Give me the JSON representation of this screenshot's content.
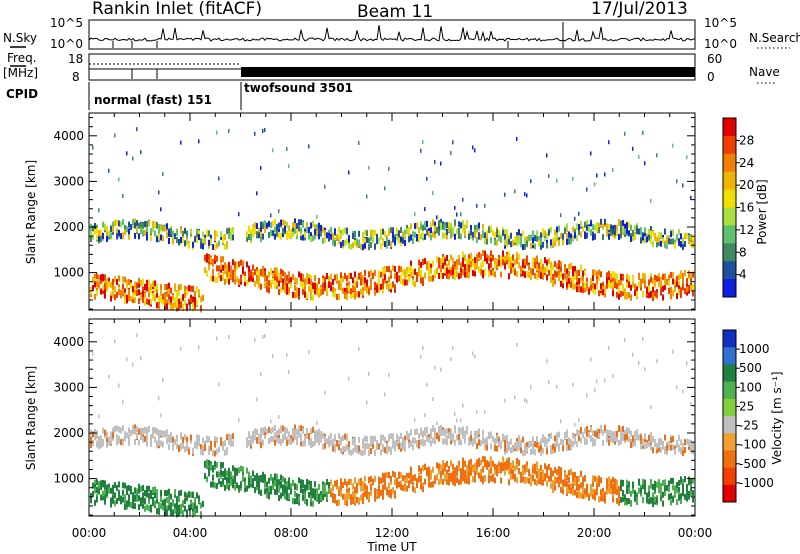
{
  "header": {
    "station": "Rankin Inlet (fitACF)",
    "beam": "Beam 11",
    "date": "17/Jul/2013"
  },
  "panels": {
    "nsky_label": "N.Sky",
    "nsearch_label": "N.Search",
    "freq_label_line1": "Freq.",
    "freq_label_line2": "[MHz]",
    "nave_label": "Nave",
    "cpid_label": "CPID",
    "log_tick_high": "10^5",
    "log_tick_low": "10^0",
    "freq_ticks": [
      "18",
      "8"
    ],
    "nave_ticks": [
      "60",
      "0"
    ],
    "cpid_modes": [
      "normal (fast) 151",
      "twofsound 3501"
    ]
  },
  "chart_data": [
    {
      "type": "heatmap",
      "name": "power",
      "xlabel": "Time UT",
      "ylabel": "Slant Range [km]",
      "xlim": [
        0,
        24
      ],
      "ylim": [
        180,
        4500
      ],
      "x_ticks": [
        "00:00",
        "04:00",
        "08:00",
        "12:00",
        "16:00",
        "20:00",
        "00:00"
      ],
      "y_ticks": [
        "1000",
        "2000",
        "3000",
        "4000"
      ],
      "colorbar_label": "Power [dB]",
      "colorbar_ticks": [
        "28",
        "24",
        "20",
        "16",
        "12",
        "8",
        "4"
      ],
      "colorbar_colors": [
        "#e00000",
        "#f04000",
        "#f08000",
        "#f0b400",
        "#f0e000",
        "#a8e040",
        "#60c070",
        "#408860",
        "#2050a0",
        "#1020e0"
      ]
    },
    {
      "type": "heatmap",
      "name": "velocity",
      "xlabel": "Time UT",
      "ylabel": "Slant Range [km]",
      "xlim": [
        0,
        24
      ],
      "ylim": [
        180,
        4500
      ],
      "x_ticks": [
        "00:00",
        "04:00",
        "08:00",
        "12:00",
        "16:00",
        "20:00",
        "00:00"
      ],
      "y_ticks": [
        "1000",
        "2000",
        "3000",
        "4000"
      ],
      "colorbar_label": "Velocity [m s⁻¹]",
      "colorbar_ticks": [
        "1000",
        "500",
        "100",
        "25",
        "-25",
        "-100",
        "-500",
        "-1000"
      ],
      "colorbar_colors": [
        "#1030c0",
        "#3070d0",
        "#208040",
        "#50b050",
        "#80d040",
        "#c0c0c0",
        "#f0a030",
        "#f07010",
        "#f04000",
        "#e00000"
      ]
    }
  ]
}
